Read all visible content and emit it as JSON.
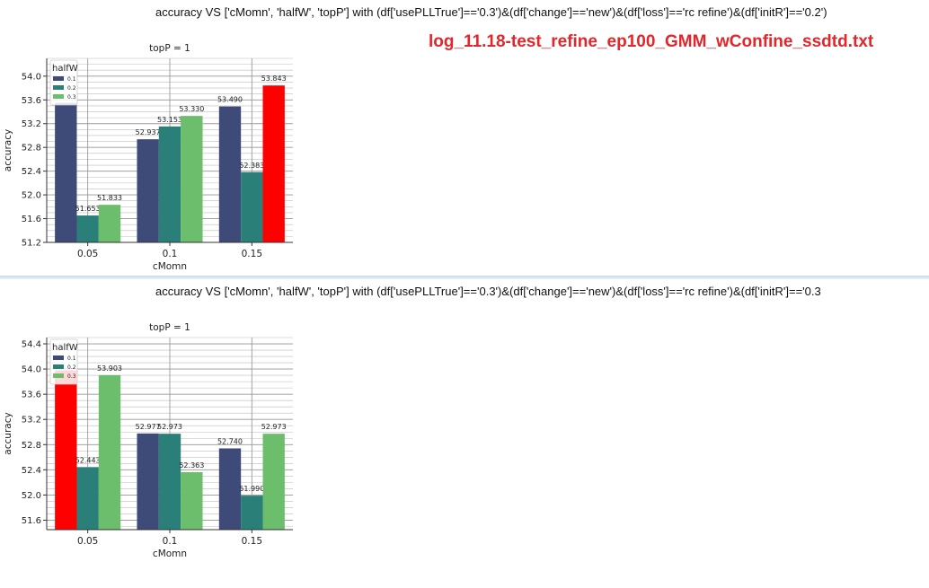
{
  "file_label": "log_11.18-test_refine_ep100_GMM_wConfine_ssdtd.txt",
  "colors": {
    "h01": "#3e4a78",
    "h02": "#2a7f79",
    "h03": "#6cbe6c",
    "highlight": "#ff0000"
  },
  "chart_data": [
    {
      "type": "bar",
      "suptitle": "accuracy VS ['cMomn', 'halfW', 'topP'] with (df['usePLLTrue']=='0.3')&(df['change']=='new')&(df['loss']=='rc refine')&(df['initR']=='0.2')",
      "title": "topP = 1",
      "xlabel": "cMomn",
      "ylabel": "accuracy",
      "categories": [
        "0.05",
        "0.1",
        "0.15"
      ],
      "legend_title": "halfW",
      "legend_position": "top-left",
      "ylim": [
        51.2,
        54.3
      ],
      "yticks": [
        51.2,
        51.6,
        52.0,
        52.4,
        52.8,
        53.2,
        53.6,
        54.0
      ],
      "grid": true,
      "series": [
        {
          "name": "0.1",
          "values": [
            53.55,
            52.937,
            53.49
          ],
          "labels": [
            "",
            "52.937",
            "53.490"
          ]
        },
        {
          "name": "0.2",
          "values": [
            51.653,
            53.153,
            52.383
          ],
          "labels": [
            "51.653",
            "53.153",
            "52.383"
          ]
        },
        {
          "name": "0.3",
          "values": [
            51.833,
            53.33,
            53.843
          ],
          "labels": [
            "51.833",
            "53.330",
            "53.843"
          ]
        }
      ],
      "highlight": {
        "series": 2,
        "category": 2
      }
    },
    {
      "type": "bar",
      "suptitle": "accuracy VS ['cMomn', 'halfW', 'topP'] with (df['usePLLTrue']=='0.3')&(df['change']=='new')&(df['loss']=='rc refine')&(df['initR']=='0.3",
      "title": "topP = 1",
      "xlabel": "cMomn",
      "ylabel": "accuracy",
      "categories": [
        "0.05",
        "0.1",
        "0.15"
      ],
      "legend_title": "halfW",
      "legend_position": "top-left",
      "ylim": [
        51.45,
        54.5
      ],
      "yticks": [
        51.6,
        52.0,
        52.4,
        52.8,
        53.2,
        53.6,
        54.0,
        54.4
      ],
      "grid": true,
      "series": [
        {
          "name": "0.1",
          "values": [
            53.98,
            52.977,
            52.74
          ],
          "labels": [
            "",
            "52.977",
            "52.740"
          ]
        },
        {
          "name": "0.2",
          "values": [
            52.443,
            52.973,
            51.99
          ],
          "labels": [
            "52.443",
            "52.973",
            "51.990"
          ]
        },
        {
          "name": "0.3",
          "values": [
            53.903,
            52.363,
            52.973
          ],
          "labels": [
            "53.903",
            "52.363",
            "52.973"
          ]
        }
      ],
      "highlight": {
        "series": 0,
        "category": 0
      }
    }
  ]
}
